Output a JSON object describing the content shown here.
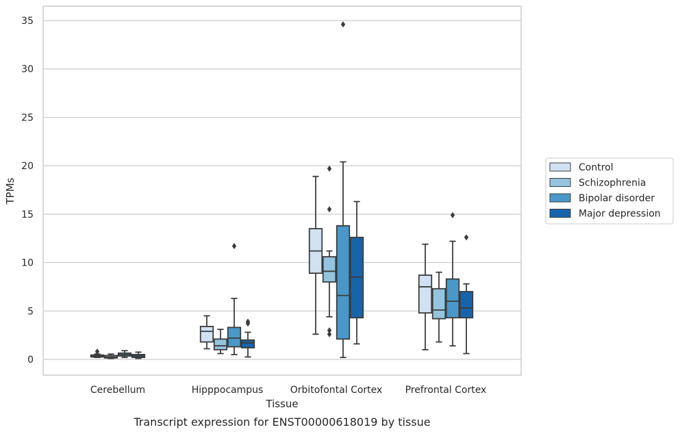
{
  "chart_data": {
    "type": "box",
    "caption": "Transcript expression for ENST00000618019 by tissue",
    "xlabel": "Tissue",
    "ylabel": "TPMs",
    "ylim": [
      -1.6,
      36.4
    ],
    "yticks": [
      0,
      5,
      10,
      15,
      20,
      25,
      30,
      35
    ],
    "grid": "horizontal",
    "legend_position": "right",
    "categories": [
      "Cerebellum",
      "Hipppocampus",
      "Orbitofontal Cortex",
      "Prefrontal Cortex"
    ],
    "series": [
      {
        "name": "Control",
        "color": "#d0e1f2",
        "boxes": [
          {
            "whisker_low": 0.2,
            "q1": 0.25,
            "median": 0.35,
            "q3": 0.45,
            "whisker_high": 0.55,
            "outliers": [
              0.8
            ]
          },
          {
            "whisker_low": 1.1,
            "q1": 1.8,
            "median": 2.9,
            "q3": 3.4,
            "whisker_high": 4.5,
            "outliers": []
          },
          {
            "whisker_low": 2.6,
            "q1": 8.9,
            "median": 11.2,
            "q3": 13.5,
            "whisker_high": 18.9,
            "outliers": []
          },
          {
            "whisker_low": 1.0,
            "q1": 4.8,
            "median": 7.5,
            "q3": 8.7,
            "whisker_high": 11.9,
            "outliers": []
          }
        ]
      },
      {
        "name": "Schizophrenia",
        "color": "#94c4df",
        "boxes": [
          {
            "whisker_low": 0.1,
            "q1": 0.15,
            "median": 0.25,
            "q3": 0.4,
            "whisker_high": 0.55,
            "outliers": []
          },
          {
            "whisker_low": 0.6,
            "q1": 1.0,
            "median": 1.4,
            "q3": 2.1,
            "whisker_high": 3.1,
            "outliers": []
          },
          {
            "whisker_low": 4.4,
            "q1": 8.0,
            "median": 9.1,
            "q3": 10.6,
            "whisker_high": 11.2,
            "outliers": [
              19.7,
              15.5,
              3.0,
              2.6
            ]
          },
          {
            "whisker_low": 1.8,
            "q1": 4.2,
            "median": 5.1,
            "q3": 7.3,
            "whisker_high": 9.0,
            "outliers": []
          }
        ]
      },
      {
        "name": "Bipolar disorder",
        "color": "#4a98c9",
        "boxes": [
          {
            "whisker_low": 0.2,
            "q1": 0.35,
            "median": 0.5,
            "q3": 0.65,
            "whisker_high": 0.9,
            "outliers": []
          },
          {
            "whisker_low": 0.5,
            "q1": 1.3,
            "median": 2.2,
            "q3": 3.3,
            "whisker_high": 6.3,
            "outliers": [
              11.7
            ]
          },
          {
            "whisker_low": 0.2,
            "q1": 2.1,
            "median": 6.6,
            "q3": 13.8,
            "whisker_high": 20.4,
            "outliers": [
              34.6
            ]
          },
          {
            "whisker_low": 1.4,
            "q1": 4.3,
            "median": 6.0,
            "q3": 8.3,
            "whisker_high": 12.2,
            "outliers": [
              14.9
            ]
          }
        ]
      },
      {
        "name": "Major depression",
        "color": "#1764ab",
        "boxes": [
          {
            "whisker_low": 0.1,
            "q1": 0.2,
            "median": 0.35,
            "q3": 0.5,
            "whisker_high": 0.75,
            "outliers": []
          },
          {
            "whisker_low": 0.25,
            "q1": 1.2,
            "median": 1.7,
            "q3": 2.0,
            "whisker_high": 2.8,
            "outliers": [
              3.9,
              3.7
            ]
          },
          {
            "whisker_low": 1.6,
            "q1": 4.3,
            "median": 8.5,
            "q3": 12.6,
            "whisker_high": 16.3,
            "outliers": []
          },
          {
            "whisker_low": 0.6,
            "q1": 4.3,
            "median": 5.3,
            "q3": 7.0,
            "whisker_high": 7.8,
            "outliers": [
              12.6
            ]
          }
        ]
      }
    ]
  }
}
